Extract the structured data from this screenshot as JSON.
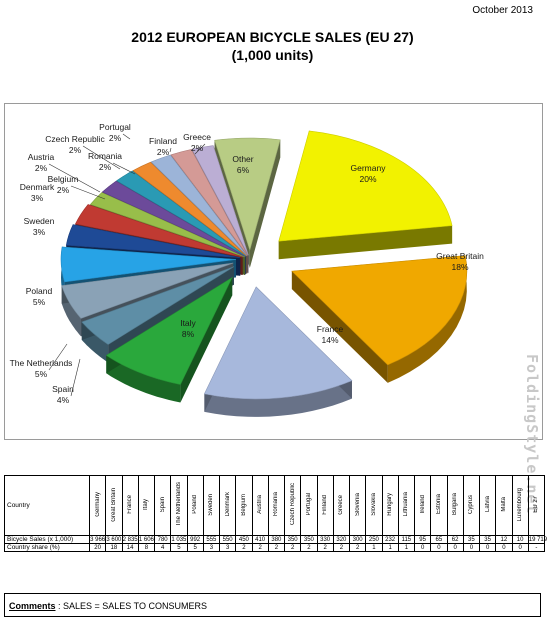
{
  "header": {
    "date": "October 2013"
  },
  "chart_data": {
    "type": "pie",
    "title": "2012 EUROPEAN BICYCLE SALES (EU 27)",
    "subtitle": "(1,000 units)",
    "slices": [
      {
        "label": "Germany",
        "value": 20,
        "pct": "20%",
        "color": "#f2f200"
      },
      {
        "label": "Great Britain",
        "value": 18,
        "pct": "18%",
        "color": "#f0a800"
      },
      {
        "label": "France",
        "value": 14,
        "pct": "14%",
        "color": "#a7b8dc"
      },
      {
        "label": "Italy",
        "value": 8,
        "pct": "8%",
        "color": "#2aa83c"
      },
      {
        "label": "Spain",
        "value": 4,
        "pct": "4%",
        "color": "#5e8ea6"
      },
      {
        "label": "The Netherlands",
        "value": 5,
        "pct": "5%",
        "color": "#8aa2b6"
      },
      {
        "label": "Poland",
        "value": 5,
        "pct": "5%",
        "color": "#27a3e6"
      },
      {
        "label": "Sweden",
        "value": 3,
        "pct": "3%",
        "color": "#1e4a96"
      },
      {
        "label": "Denmark",
        "value": 3,
        "pct": "3%",
        "color": "#c03a32"
      },
      {
        "label": "Belgium",
        "value": 2,
        "pct": "2%",
        "color": "#98be4a"
      },
      {
        "label": "Austria",
        "value": 2,
        "pct": "2%",
        "color": "#6c4a9a"
      },
      {
        "label": "Czech Republic",
        "value": 2,
        "pct": "2%",
        "color": "#2a9ab4"
      },
      {
        "label": "Romania",
        "value": 2,
        "pct": "2%",
        "color": "#ee8a2e"
      },
      {
        "label": "Portugal",
        "value": 2,
        "pct": "2%",
        "color": "#9cb4d8"
      },
      {
        "label": "Finland",
        "value": 2,
        "pct": "2%",
        "color": "#d49a96"
      },
      {
        "label": "Greece",
        "value": 2,
        "pct": "2%",
        "color": "#bbaed4"
      },
      {
        "label": "Other",
        "value": 6,
        "pct": "6%",
        "color": "#b8cc84"
      }
    ]
  },
  "table": {
    "country_label": "Country",
    "countries": [
      "Germany",
      "Great Britain",
      "France",
      "Italy",
      "Spain",
      "The Netherlands",
      "Poland",
      "Sweden",
      "Denmark",
      "Belgium",
      "Austria",
      "Romania",
      "Czech Republic",
      "Portugal",
      "Finland",
      "Greece",
      "Slovenia",
      "Slovakia",
      "Hungary",
      "Lithuania",
      "Ireland",
      "Estonia",
      "Bulgaria",
      "Cyprus",
      "Latvia",
      "Malta",
      "Luxembourg",
      "EU 27"
    ],
    "rows": [
      {
        "label": "Bicycle Sales (x 1,000)",
        "values": [
          "3 966",
          "3 600",
          "2 835",
          "1 606",
          "780",
          "1 035",
          "992",
          "555",
          "550",
          "450",
          "410",
          "380",
          "350",
          "350",
          "330",
          "320",
          "300",
          "250",
          "232",
          "115",
          "95",
          "65",
          "62",
          "35",
          "35",
          "12",
          "10",
          "19 719"
        ]
      },
      {
        "label": "Country share (%)",
        "values": [
          "20",
          "18",
          "14",
          "8",
          "4",
          "5",
          "5",
          "3",
          "3",
          "2",
          "2",
          "2",
          "2",
          "2",
          "2",
          "2",
          "2",
          "1",
          "1",
          "1",
          "0",
          "0",
          "0",
          "0",
          "0",
          "0",
          "0",
          "-"
        ]
      }
    ]
  },
  "comments": {
    "label": "Comments",
    "text": " : SALES = SALES TO CONSUMERS"
  },
  "watermark": "FoldingStyle.net"
}
